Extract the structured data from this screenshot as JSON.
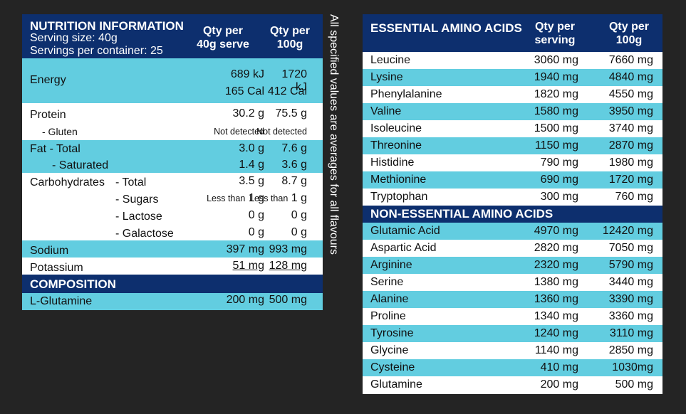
{
  "nutrition": {
    "title": "NUTRITION INFORMATION",
    "serving_size": "Serving size: 40g",
    "servings_per_container": "Servings per container: 25",
    "col_serving": [
      "Qty per",
      "40g serve"
    ],
    "col_100g": [
      "Qty per",
      "100g"
    ],
    "energy": {
      "label": "Energy",
      "kj_serving": "689 kJ",
      "kj_100g": "1720 kJ",
      "cal_serving": "165 Cal",
      "cal_100g": "412 Cal"
    },
    "protein": {
      "label": "Protein",
      "serving": "30.2 g",
      "per100": "75.5 g"
    },
    "gluten": {
      "label": "- Gluten",
      "serving": "Not detected",
      "per100": "Not detected"
    },
    "fat": {
      "label": "Fat - Total",
      "serving": "3.0 g",
      "per100": "7.6 g"
    },
    "saturated": {
      "label": "- Saturated",
      "serving": "1.4 g",
      "per100": "3.6 g"
    },
    "carbohydrates": {
      "label": "Carbohydrates",
      "sub": "- Total",
      "serving": "3.5 g",
      "per100": "8.7 g"
    },
    "sugars": {
      "label": "- Sugars",
      "serving_prefix": "Less than",
      "serving": "1 g",
      "per100_prefix": "Less than",
      "per100": "1 g"
    },
    "lactose": {
      "label": "- Lactose",
      "serving": "0 g",
      "per100": "0 g"
    },
    "galactose": {
      "label": "- Galactose",
      "serving": "0 g",
      "per100": "0 g"
    },
    "sodium": {
      "label": "Sodium",
      "serving": "397 mg",
      "per100": "993 mg"
    },
    "potassium": {
      "label": "Potassium",
      "serving": "51 mg",
      "per100": "128 mg"
    },
    "composition_title": "COMPOSITION",
    "glutamine": {
      "label": "L-Glutamine",
      "serving": "200 mg",
      "per100": "500 mg"
    }
  },
  "side_note": "All specified values are averages for all flavours",
  "amino": {
    "essential_title": "ESSENTIAL AMINO ACIDS",
    "col_serving": [
      "Qty per",
      "serving"
    ],
    "col_100g": [
      "Qty per",
      "100g"
    ],
    "essential": [
      {
        "name": "Leucine",
        "serving": "3060 mg",
        "per100": "7660 mg"
      },
      {
        "name": "Lysine",
        "serving": "1940 mg",
        "per100": "4840 mg"
      },
      {
        "name": "Phenylalanine",
        "serving": "1820 mg",
        "per100": "4550 mg"
      },
      {
        "name": "Valine",
        "serving": "1580 mg",
        "per100": "3950 mg"
      },
      {
        "name": "Isoleucine",
        "serving": "1500 mg",
        "per100": "3740 mg"
      },
      {
        "name": "Threonine",
        "serving": "1150 mg",
        "per100": "2870 mg"
      },
      {
        "name": "Histidine",
        "serving": "790 mg",
        "per100": "1980 mg"
      },
      {
        "name": "Methionine",
        "serving": "690 mg",
        "per100": "1720 mg"
      },
      {
        "name": "Tryptophan",
        "serving": "300 mg",
        "per100": "760 mg"
      }
    ],
    "non_essential_title": "NON-ESSENTIAL AMINO ACIDS",
    "non_essential": [
      {
        "name": "Glutamic Acid",
        "serving": "4970 mg",
        "per100": "12420 mg"
      },
      {
        "name": "Aspartic Acid",
        "serving": "2820 mg",
        "per100": "7050 mg"
      },
      {
        "name": "Arginine",
        "serving": "2320 mg",
        "per100": "5790 mg"
      },
      {
        "name": "Serine",
        "serving": "1380 mg",
        "per100": "3440 mg"
      },
      {
        "name": "Alanine",
        "serving": "1360 mg",
        "per100": "3390 mg"
      },
      {
        "name": "Proline",
        "serving": "1340 mg",
        "per100": "3360 mg"
      },
      {
        "name": "Tyrosine",
        "serving": "1240 mg",
        "per100": "3110 mg"
      },
      {
        "name": "Glycine",
        "serving": "1140 mg",
        "per100": "2850 mg"
      },
      {
        "name": "Cysteine",
        "serving": "410 mg",
        "per100": "1030mg"
      },
      {
        "name": "Glutamine",
        "serving": "200 mg",
        "per100": "500 mg"
      }
    ]
  }
}
